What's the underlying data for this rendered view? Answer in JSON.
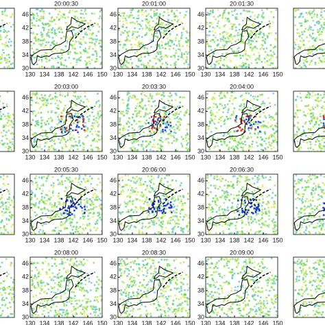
{
  "panels": [
    {
      "title": "20:00:30"
    },
    {
      "title": "20:01:00"
    },
    {
      "title": "20:01:30"
    },
    {
      "title": "20:03:00"
    },
    {
      "title": "20:03:30"
    },
    {
      "title": "20:04:00"
    },
    {
      "title": "20:05:30"
    },
    {
      "title": "20:06:00"
    },
    {
      "title": "20:06:30"
    },
    {
      "title": "20:08:00"
    },
    {
      "title": "20:08:30"
    },
    {
      "title": "20:09:00"
    }
  ],
  "xticks": [
    130,
    134,
    138,
    142,
    146,
    150
  ],
  "yticks": [
    30,
    34,
    38,
    42,
    46
  ],
  "xlim": [
    130,
    150
  ],
  "ylim": [
    30,
    48
  ]
}
